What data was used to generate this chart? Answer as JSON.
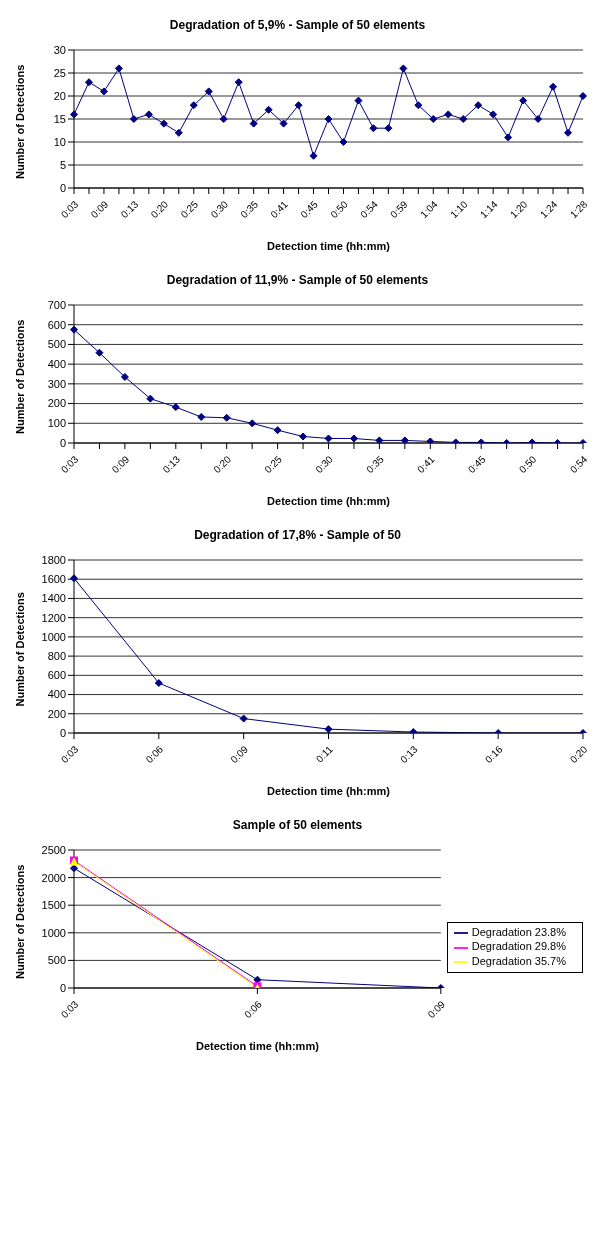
{
  "chart_data": [
    {
      "type": "line",
      "title": "Degradation of 5,9% - Sample of 50 elements",
      "xlabel": "Detection time (hh:mm)",
      "ylabel": "Number of Detections",
      "categories": [
        "0:03",
        null,
        "0:09",
        null,
        "0:13",
        null,
        "0:20",
        null,
        "0:25",
        null,
        "0:30",
        null,
        "0:35",
        null,
        "0:41",
        null,
        "0:45",
        null,
        "0:50",
        null,
        "0:54",
        null,
        "0:59",
        null,
        "1:04",
        null,
        "1:10",
        null,
        "1:14",
        null,
        "1:20",
        null,
        "1:24",
        null,
        "1:28"
      ],
      "series": [
        {
          "color": "#000080",
          "values": [
            16,
            23,
            21,
            26,
            15,
            16,
            14,
            12,
            18,
            21,
            15,
            23,
            14,
            17,
            14,
            18,
            7,
            15,
            10,
            19,
            13,
            13,
            26,
            18,
            15,
            16,
            15,
            18,
            16,
            11,
            19,
            15,
            22,
            12,
            20
          ]
        }
      ],
      "ylim": [
        0,
        30
      ],
      "yticks": [
        0,
        5,
        10,
        15,
        20,
        25,
        30
      ],
      "grid": "y",
      "marker": "diamond",
      "legend": false
    },
    {
      "type": "line",
      "title": "Degradation of 11,9% - Sample of 50 elements",
      "xlabel": "Detection time (hh:mm)",
      "ylabel": "Number of Detections",
      "categories": [
        "0:03",
        null,
        "0:09",
        null,
        "0:13",
        null,
        "0:20",
        null,
        "0:25",
        null,
        "0:30",
        null,
        "0:35",
        null,
        "0:41",
        null,
        "0:45",
        null,
        "0:50",
        null,
        "0:54"
      ],
      "series": [
        {
          "color": "#000080",
          "values": [
            575,
            458,
            335,
            225,
            182,
            132,
            128,
            100,
            65,
            33,
            23,
            23,
            13,
            13,
            8,
            3,
            3,
            0,
            3,
            0,
            0
          ]
        }
      ],
      "ylim": [
        0,
        700
      ],
      "yticks": [
        0,
        100,
        200,
        300,
        400,
        500,
        600,
        700
      ],
      "grid": "y",
      "marker": "diamond",
      "legend": false
    },
    {
      "type": "line",
      "title": "Degradation of 17,8% - Sample of 50",
      "xlabel": "Detection time (hh:mm)",
      "ylabel": "Number of Detections",
      "categories": [
        "0:03",
        "0:06",
        "0:09",
        "0:11",
        "0:13",
        "0:16",
        "0:20"
      ],
      "series": [
        {
          "color": "#000080",
          "values": [
            1610,
            520,
            150,
            40,
            10,
            0,
            0
          ]
        }
      ],
      "ylim": [
        0,
        1800
      ],
      "yticks": [
        0,
        200,
        400,
        600,
        800,
        1000,
        1200,
        1400,
        1600,
        1800
      ],
      "grid": "y",
      "marker": "diamond",
      "legend": false
    },
    {
      "type": "line",
      "title": "Sample of 50 elements",
      "xlabel": "Detection time (hh:mm)",
      "ylabel": "Number of Detections",
      "categories": [
        "0:03",
        "0:06",
        "0:09"
      ],
      "series": [
        {
          "name": "Degradation 23.8%",
          "color": "#000080",
          "marker": "diamond",
          "values": [
            2170,
            150,
            0
          ]
        },
        {
          "name": "Degradation 29.8%",
          "color": "#ff00ff",
          "marker": "square",
          "values": [
            2310,
            30,
            null
          ]
        },
        {
          "name": "Degradation 35.7%",
          "color": "#ffff00",
          "marker": "triangle",
          "values": [
            2290,
            0,
            null
          ]
        }
      ],
      "ylim": [
        0,
        2500
      ],
      "yticks": [
        0,
        500,
        1000,
        1500,
        2000,
        2500
      ],
      "grid": "y",
      "legend": "right"
    }
  ]
}
